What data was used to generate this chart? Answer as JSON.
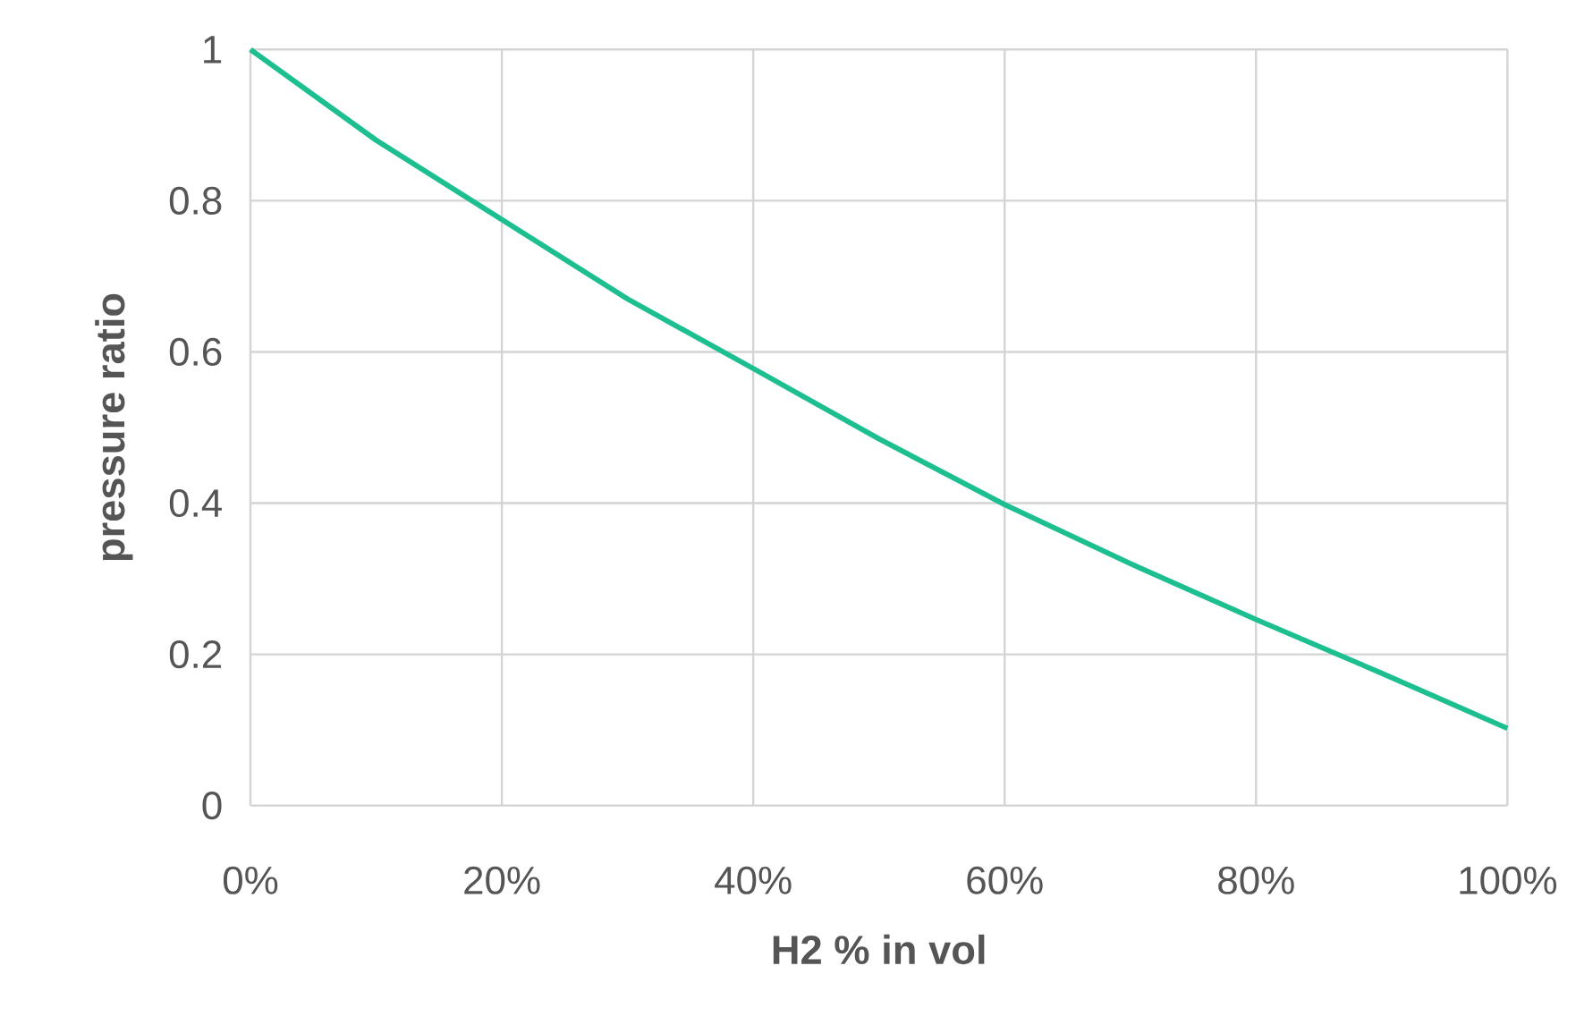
{
  "chart_data": {
    "type": "line",
    "xlabel": "H2 % in vol",
    "ylabel": "pressure ratio",
    "x": [
      0,
      10,
      20,
      30,
      40,
      50,
      60,
      70,
      80,
      90,
      100
    ],
    "series": [
      {
        "color": "#1dbf91",
        "values": [
          1.0,
          0.88,
          0.775,
          0.67,
          0.578,
          0.485,
          0.398,
          0.32,
          0.246,
          0.175,
          0.102
        ]
      }
    ],
    "xlim": [
      0,
      100
    ],
    "ylim": [
      0,
      1
    ],
    "xticks": [
      {
        "value": 0,
        "label": "0%"
      },
      {
        "value": 20,
        "label": "20%"
      },
      {
        "value": 40,
        "label": "40%"
      },
      {
        "value": 60,
        "label": "60%"
      },
      {
        "value": 80,
        "label": "80%"
      },
      {
        "value": 100,
        "label": "100%"
      }
    ],
    "yticks": [
      0,
      0.2,
      0.4,
      0.6,
      0.8,
      1
    ],
    "grid": true,
    "marker": "none",
    "line_style": "solid"
  }
}
